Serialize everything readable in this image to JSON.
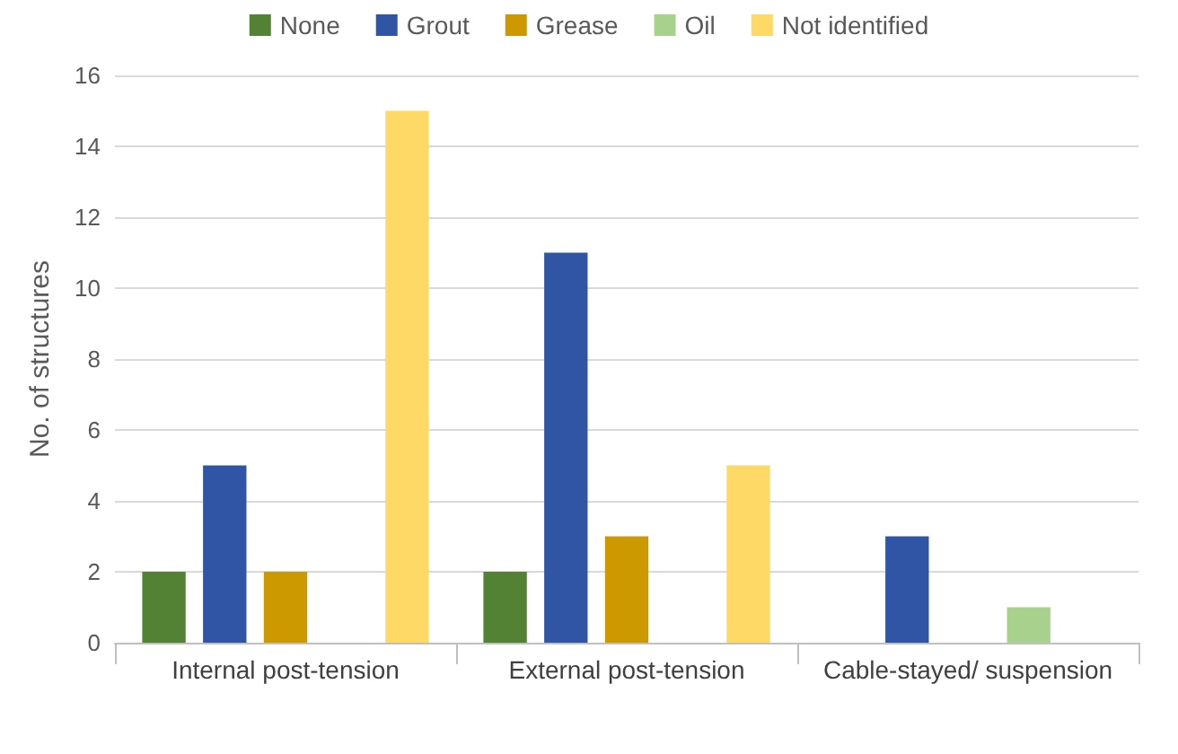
{
  "chart_data": {
    "type": "bar",
    "ylabel": "No. of structures",
    "categories": [
      "Internal post-tension",
      "External post-tension",
      "Cable-stayed/ suspension"
    ],
    "series": [
      {
        "name": "None",
        "color": "#548235",
        "values": [
          2,
          2,
          0
        ]
      },
      {
        "name": "Grout",
        "color": "#2f55a4",
        "values": [
          5,
          11,
          3
        ]
      },
      {
        "name": "Grease",
        "color": "#cc9900",
        "values": [
          2,
          3,
          0
        ]
      },
      {
        "name": "Oil",
        "color": "#a9d18e",
        "values": [
          0,
          0,
          1
        ]
      },
      {
        "name": "Not identified",
        "color": "#ffd966",
        "values": [
          15,
          5,
          0
        ]
      }
    ],
    "ylim": [
      0,
      16
    ],
    "yticks": [
      0,
      2,
      4,
      6,
      8,
      10,
      12,
      14,
      16
    ],
    "grid": "y",
    "legend": "top"
  }
}
